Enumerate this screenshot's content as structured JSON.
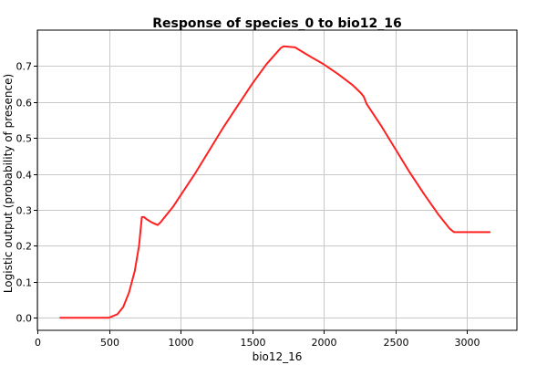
{
  "chart_data": {
    "type": "line",
    "title": "Response of species_0 to bio12_16",
    "xlabel": "bio12_16",
    "ylabel": "Logistic output (probability of presence)",
    "xlim": [
      0,
      3350
    ],
    "ylim": [
      -0.035,
      0.8
    ],
    "xticks": [
      0,
      500,
      1000,
      1500,
      2000,
      2500,
      3000
    ],
    "yticks": [
      0.0,
      0.1,
      0.2,
      0.3,
      0.4,
      0.5,
      0.6,
      0.7
    ],
    "xtick_labels": [
      "0",
      "500",
      "1000",
      "1500",
      "2000",
      "2500",
      "3000"
    ],
    "ytick_labels": [
      "0.0",
      "0.1",
      "0.2",
      "0.3",
      "0.4",
      "0.5",
      "0.6",
      "0.7"
    ],
    "grid": true,
    "series": [
      {
        "color": "#ff2020",
        "x": [
          160,
          300,
          450,
          500,
          560,
          600,
          640,
          680,
          710,
          730,
          745,
          760,
          800,
          840,
          860,
          900,
          950,
          1000,
          1100,
          1200,
          1300,
          1400,
          1500,
          1600,
          1700,
          1720,
          1800,
          1900,
          2000,
          2100,
          2200,
          2260,
          2280,
          2300,
          2400,
          2500,
          2600,
          2700,
          2800,
          2880,
          2910,
          3000,
          3100,
          3160
        ],
        "y": [
          0.0,
          0.0,
          0.0,
          0.0,
          0.01,
          0.03,
          0.07,
          0.13,
          0.2,
          0.28,
          0.28,
          0.275,
          0.265,
          0.258,
          0.265,
          0.285,
          0.31,
          0.34,
          0.4,
          0.465,
          0.53,
          0.59,
          0.65,
          0.705,
          0.75,
          0.755,
          0.752,
          0.728,
          0.705,
          0.678,
          0.648,
          0.625,
          0.615,
          0.595,
          0.535,
          0.47,
          0.405,
          0.345,
          0.288,
          0.248,
          0.238,
          0.238,
          0.238,
          0.238
        ]
      }
    ]
  }
}
